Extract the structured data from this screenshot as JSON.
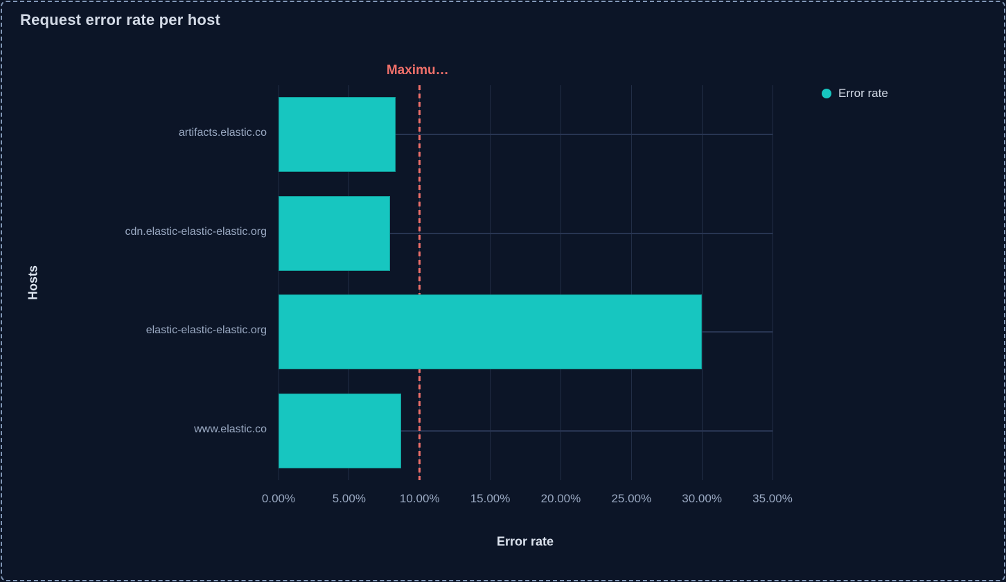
{
  "header": {
    "title": "Request error rate per host"
  },
  "panel": {
    "border_color": "#8197b6",
    "background_color": "#0c1527"
  },
  "legend": {
    "position": "right",
    "items": [
      {
        "label": "Error rate",
        "color": "#17c6c0"
      }
    ]
  },
  "chart_data": {
    "type": "bar",
    "orientation": "horizontal",
    "title": "Request error rate per host",
    "categories": [
      "artifacts.elastic.co",
      "cdn.elastic-elastic-elastic.org",
      "elastic-elastic-elastic.org",
      "www.elastic.co"
    ],
    "series": [
      {
        "name": "Error rate",
        "values": [
          8.3,
          7.9,
          30.0,
          8.7
        ]
      }
    ],
    "values_unit": "percent",
    "xlabel": "Error rate",
    "ylabel": "Hosts",
    "xlim": [
      0,
      35
    ],
    "xticks": [
      0,
      5,
      10,
      15,
      20,
      25,
      30,
      35
    ],
    "xtick_labels": [
      "0.00%",
      "5.00%",
      "10.00%",
      "15.00%",
      "20.00%",
      "25.00%",
      "30.00%",
      "35.00%"
    ],
    "grid": true,
    "legend_position": "right",
    "bar_color": "#17c6c0",
    "reference_line": {
      "value": 10,
      "label": "Maximu…",
      "color": "#f0706a",
      "style": "dashed"
    }
  }
}
